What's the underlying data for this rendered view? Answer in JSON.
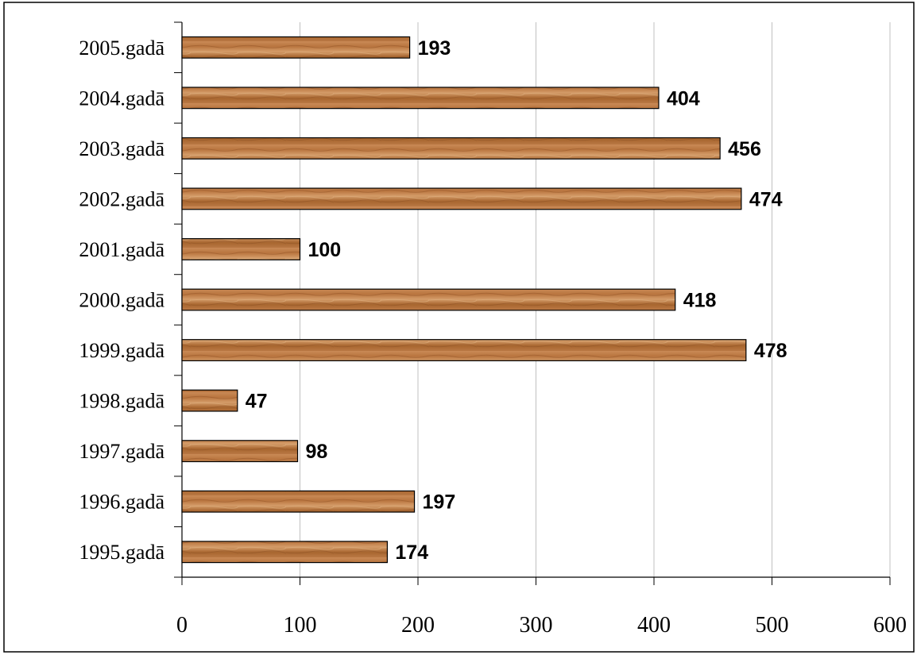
{
  "chart_data": {
    "type": "bar",
    "orientation": "horizontal",
    "title": "",
    "xlabel": "",
    "ylabel": "",
    "categories": [
      "2005.gadā",
      "2004.gadā",
      "2003.gadā",
      "2002.gadā",
      "2001.gadā",
      "2000.gadā",
      "1999.gadā",
      "1998.gadā",
      "1997.gadā",
      "1996.gadā",
      "1995.gadā"
    ],
    "values": [
      193,
      404,
      456,
      474,
      100,
      418,
      478,
      47,
      98,
      197,
      174
    ],
    "xlim": [
      0,
      600
    ],
    "xticks": [
      "0",
      "100",
      "200",
      "300",
      "400",
      "500",
      "600"
    ],
    "grid": "vertical",
    "legend": "none",
    "colors": {
      "bar": "#b06b3c",
      "bar_light": "#d39a6a",
      "bar_dark": "#8a4f28",
      "gridline": "#c0c0c0",
      "axis": "#000000"
    }
  }
}
